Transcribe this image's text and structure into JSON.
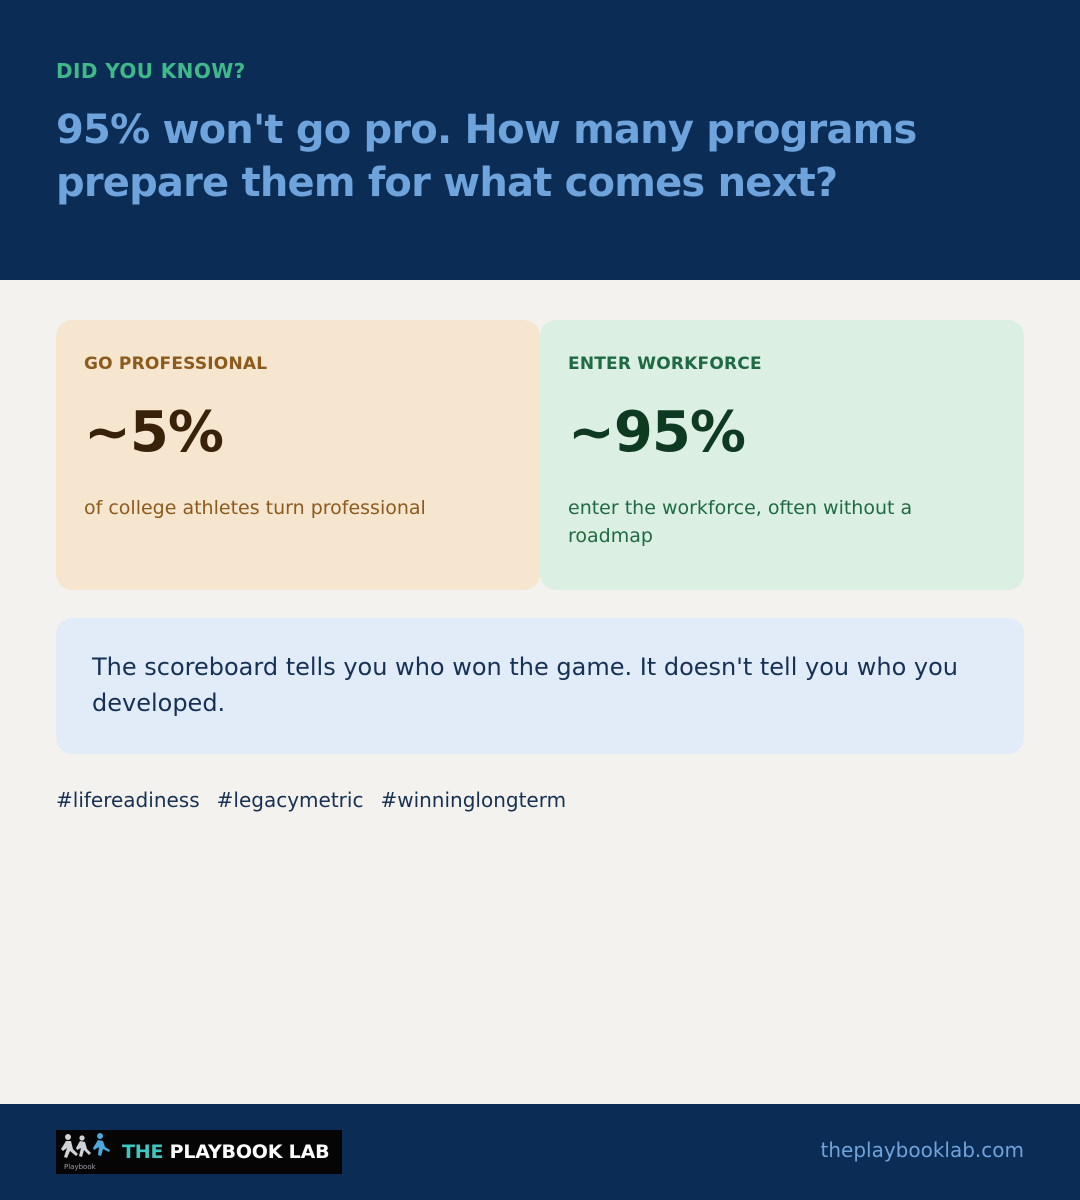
{
  "header": {
    "eyebrow": "DID YOU KNOW?",
    "headline": "95% won't go pro. How many programs prepare them for what comes next?"
  },
  "cards": {
    "professional": {
      "label": "GO PROFESSIONAL",
      "value": "~5%",
      "description": "of college athletes turn professional",
      "percent": 5
    },
    "workforce": {
      "label": "ENTER WORKFORCE",
      "value": "~95%",
      "description": "enter the workforce, often without a roadmap",
      "percent": 95
    }
  },
  "quote": {
    "text": "The scoreboard tells you who won the game. It doesn't tell you who you developed."
  },
  "hashtags": [
    "#lifereadiness",
    "#legacymetric",
    "#winninglongterm"
  ],
  "footer": {
    "logo_accent": "THE",
    "logo_main": " PLAYBOOK LAB",
    "logo_small": "Playbook",
    "url": "theplaybooklab.com"
  },
  "colors": {
    "navy": "#0b2c54",
    "accent_green": "#3fb98a",
    "headline_blue": "#6fa3dc",
    "card_pro_bg": "#f7e6cf",
    "card_work_bg": "#dcefe3",
    "quote_bg": "#e2ecf9",
    "logo_teal": "#3fc6c0"
  },
  "icons": {
    "logo": "runners-silhouette-icon"
  }
}
